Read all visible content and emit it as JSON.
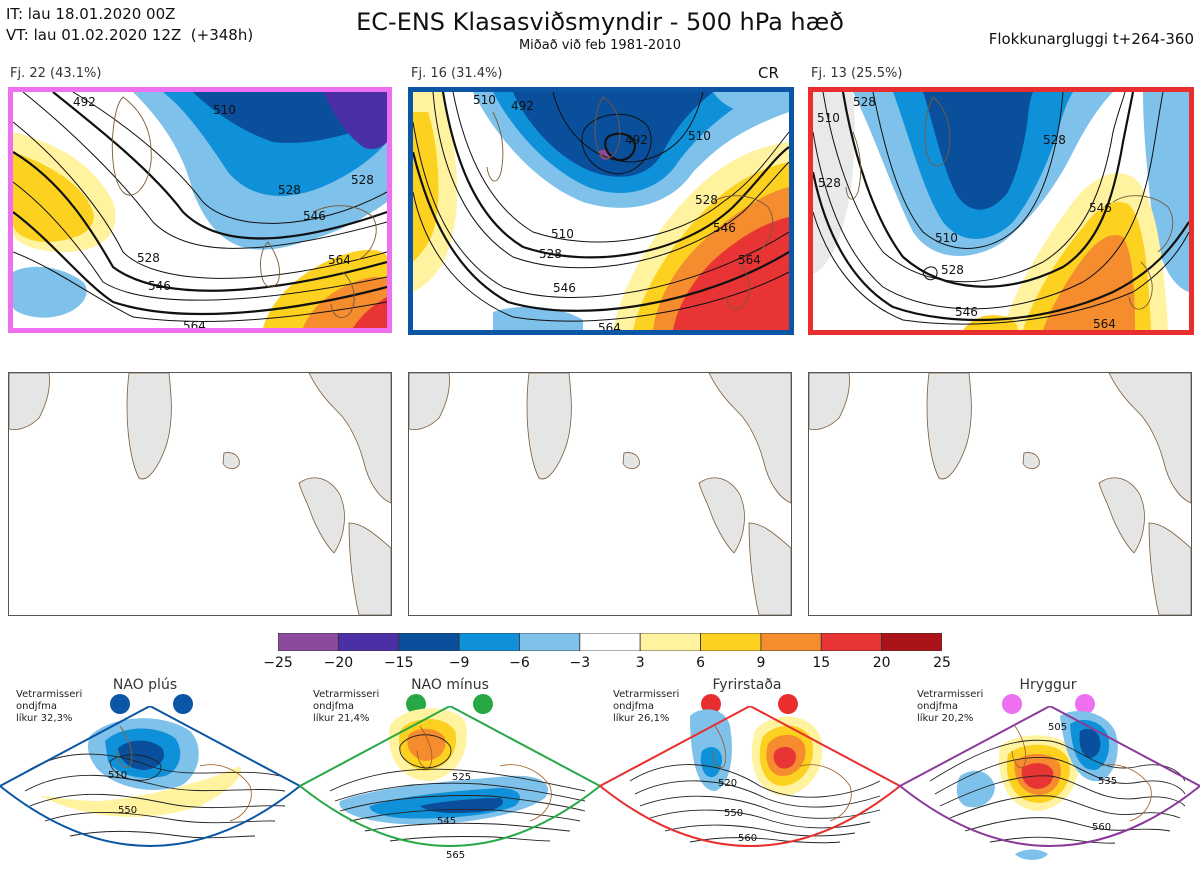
{
  "header": {
    "it_line": "IT: lau 18.01.2020 00Z",
    "vt_line": "VT: lau 01.02.2020 12Z  (+348h)",
    "title": "EC-ENS Klasasviðsmyndir - 500 hPa hæð",
    "subtitle": "Miðað við feb 1981-2010",
    "window": "Flokkunargluggi t+264-360"
  },
  "clusters": [
    {
      "label": "Fj. 22 (43.1%)",
      "members": 22,
      "percent": 43.1,
      "frame_color": "#ee6ff0",
      "cr": "",
      "contours": [
        "492",
        "510",
        "528",
        "546",
        "564",
        "528",
        "546",
        "564"
      ]
    },
    {
      "label": "Fj. 16 (31.4%)",
      "members": 16,
      "percent": 31.4,
      "frame_color": "#0a55a4",
      "cr": "CR",
      "contours": [
        "510",
        "492",
        "528",
        "510",
        "546",
        "564",
        "528",
        "546",
        "564"
      ]
    },
    {
      "label": "Fj. 13 (25.5%)",
      "members": 13,
      "percent": 25.5,
      "frame_color": "#e82e2e",
      "cr": "",
      "contours": [
        "510",
        "528",
        "546",
        "510",
        "528",
        "564"
      ]
    }
  ],
  "colorbar": {
    "ticks": [
      "−25",
      "−20",
      "−15",
      "−9",
      "−6",
      "−3",
      "3",
      "6",
      "9",
      "15",
      "20",
      "25"
    ],
    "colors": [
      "#8b4a9b",
      "#4b2fa6",
      "#0a4f9b",
      "#0f91d9",
      "#7ec1ea",
      "#ffffff",
      "#fff3a0",
      "#fdd120",
      "#f58c2e",
      "#e83434",
      "#aa1418"
    ]
  },
  "regimes": [
    {
      "name": "NAO plús",
      "note_lines": [
        "Vetrarmisseri",
        "ondjfma",
        "líkur 32,3%"
      ],
      "probability_percent": 32.3,
      "color": "#0a55a4",
      "labels": [
        "510",
        "550"
      ]
    },
    {
      "name": "NAO mínus",
      "note_lines": [
        "Vetrarmisseri",
        "ondjfma",
        "líkur 21,4%"
      ],
      "probability_percent": 21.4,
      "color": "#27a845",
      "labels": [
        "525",
        "545",
        "565"
      ]
    },
    {
      "name": "Fyrirstaða",
      "note_lines": [
        "Vetrarmisseri",
        "ondjfma",
        "líkur 26,1%"
      ],
      "probability_percent": 26.1,
      "color": "#e82e2e",
      "labels": [
        "520",
        "550",
        "560"
      ]
    },
    {
      "name": "Hryggur",
      "note_lines": [
        "Vetrarmisseri",
        "ondjfma",
        "líkur 20,2%"
      ],
      "probability_percent": 20.2,
      "color": "#8a3a99",
      "labels": [
        "505",
        "535",
        "560"
      ]
    }
  ]
}
